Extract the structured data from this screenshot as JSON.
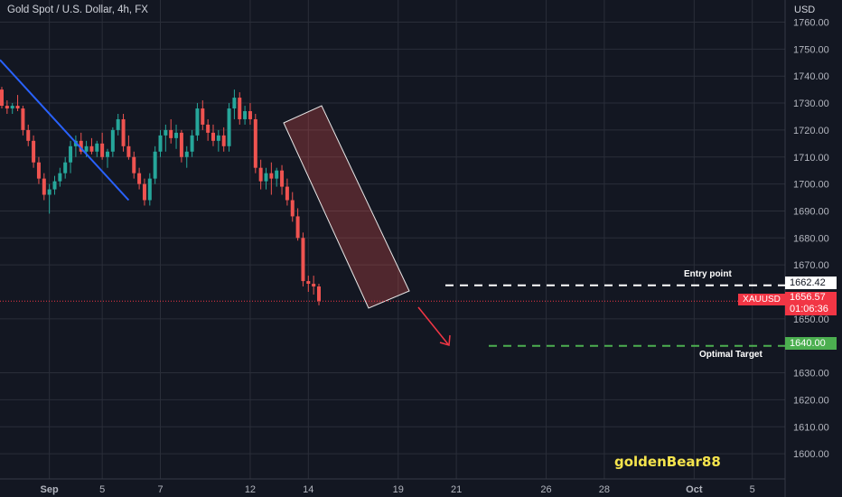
{
  "header": {
    "title": "Gold Spot / U.S. Dollar, 4h, FX",
    "currency": "USD"
  },
  "watermark": "goldenBear88",
  "colors": {
    "background": "#131722",
    "grid": "#2a2e39",
    "up": "#26a69a",
    "down": "#ef5350",
    "trendline": "#2962ff",
    "target": "#4caf50",
    "entry": "#ffffff",
    "axis_text": "#b2b5be"
  },
  "annotations": {
    "entry": {
      "label": "Entry point",
      "price": "1662.42"
    },
    "target": {
      "label": "Optimal Target",
      "price": "1640.00"
    }
  },
  "current": {
    "symbol": "XAUUSD",
    "price": "1656.57",
    "countdown": "01:06:36"
  },
  "chart_data": {
    "type": "candlestick",
    "symbol": "XAUUSD",
    "timeframe": "4h",
    "ylim": [
      1593,
      1763
    ],
    "y_ticks": [
      "1760.00",
      "1750.00",
      "1740.00",
      "1730.00",
      "1720.00",
      "1710.00",
      "1700.00",
      "1690.00",
      "1680.00",
      "1670.00",
      "1650.00",
      "1630.00",
      "1620.00",
      "1610.00",
      "1600.00"
    ],
    "x_ticks": [
      {
        "label": "Sep",
        "slot": 9
      },
      {
        "label": "5",
        "slot": 19
      },
      {
        "label": "7",
        "slot": 30
      },
      {
        "label": "12",
        "slot": 47
      },
      {
        "label": "14",
        "slot": 58
      },
      {
        "label": "19",
        "slot": 75
      },
      {
        "label": "21",
        "slot": 86
      },
      {
        "label": "26",
        "slot": 103
      },
      {
        "label": "28",
        "slot": 114
      },
      {
        "label": "Oct",
        "slot": 131
      },
      {
        "label": "5",
        "slot": 142
      }
    ],
    "candles": [
      [
        1735,
        1736,
        1728,
        1729
      ],
      [
        1729,
        1731,
        1726,
        1728
      ],
      [
        1728,
        1730,
        1726,
        1729
      ],
      [
        1729,
        1733,
        1727,
        1728
      ],
      [
        1728,
        1729,
        1718,
        1720
      ],
      [
        1720,
        1722,
        1714,
        1716
      ],
      [
        1716,
        1718,
        1706,
        1708
      ],
      [
        1708,
        1710,
        1700,
        1702
      ],
      [
        1702,
        1704,
        1694,
        1696
      ],
      [
        1696,
        1700,
        1689,
        1698
      ],
      [
        1698,
        1703,
        1696,
        1701
      ],
      [
        1701,
        1706,
        1699,
        1704
      ],
      [
        1704,
        1710,
        1702,
        1708
      ],
      [
        1708,
        1716,
        1704,
        1714
      ],
      [
        1714,
        1718,
        1710,
        1716
      ],
      [
        1716,
        1719,
        1711,
        1712
      ],
      [
        1712,
        1716,
        1710,
        1714
      ],
      [
        1714,
        1717,
        1711,
        1712
      ],
      [
        1712,
        1716,
        1710,
        1715
      ],
      [
        1715,
        1719,
        1709,
        1710
      ],
      [
        1710,
        1713,
        1706,
        1712
      ],
      [
        1712,
        1721,
        1710,
        1720
      ],
      [
        1720,
        1726,
        1718,
        1724
      ],
      [
        1724,
        1726,
        1712,
        1714
      ],
      [
        1714,
        1718,
        1709,
        1710
      ],
      [
        1710,
        1712,
        1702,
        1704
      ],
      [
        1704,
        1706,
        1698,
        1700
      ],
      [
        1700,
        1702,
        1692,
        1694
      ],
      [
        1694,
        1704,
        1692,
        1702
      ],
      [
        1702,
        1714,
        1700,
        1712
      ],
      [
        1712,
        1720,
        1710,
        1718
      ],
      [
        1718,
        1722,
        1712,
        1720
      ],
      [
        1720,
        1724,
        1715,
        1717
      ],
      [
        1717,
        1722,
        1713,
        1719
      ],
      [
        1719,
        1720,
        1708,
        1710
      ],
      [
        1710,
        1714,
        1706,
        1712
      ],
      [
        1712,
        1720,
        1710,
        1718
      ],
      [
        1718,
        1730,
        1716,
        1728
      ],
      [
        1728,
        1731,
        1720,
        1722
      ],
      [
        1722,
        1724,
        1716,
        1719
      ],
      [
        1719,
        1722,
        1714,
        1716
      ],
      [
        1716,
        1720,
        1712,
        1718
      ],
      [
        1718,
        1721,
        1712,
        1714
      ],
      [
        1714,
        1730,
        1712,
        1728
      ],
      [
        1728,
        1735,
        1724,
        1732
      ],
      [
        1732,
        1734,
        1722,
        1724
      ],
      [
        1724,
        1729,
        1722,
        1727
      ],
      [
        1727,
        1730,
        1722,
        1724
      ],
      [
        1724,
        1726,
        1704,
        1706
      ],
      [
        1706,
        1709,
        1698,
        1701
      ],
      [
        1701,
        1706,
        1698,
        1704
      ],
      [
        1704,
        1708,
        1696,
        1702
      ],
      [
        1702,
        1706,
        1699,
        1705
      ],
      [
        1705,
        1707,
        1696,
        1699
      ],
      [
        1699,
        1702,
        1692,
        1694
      ],
      [
        1694,
        1697,
        1686,
        1688
      ],
      [
        1688,
        1691,
        1679,
        1680
      ],
      [
        1680,
        1682,
        1662,
        1664
      ],
      [
        1664,
        1666,
        1660,
        1663
      ],
      [
        1663,
        1666,
        1659,
        1662
      ],
      [
        1662,
        1663,
        1655,
        1656.57
      ]
    ]
  }
}
